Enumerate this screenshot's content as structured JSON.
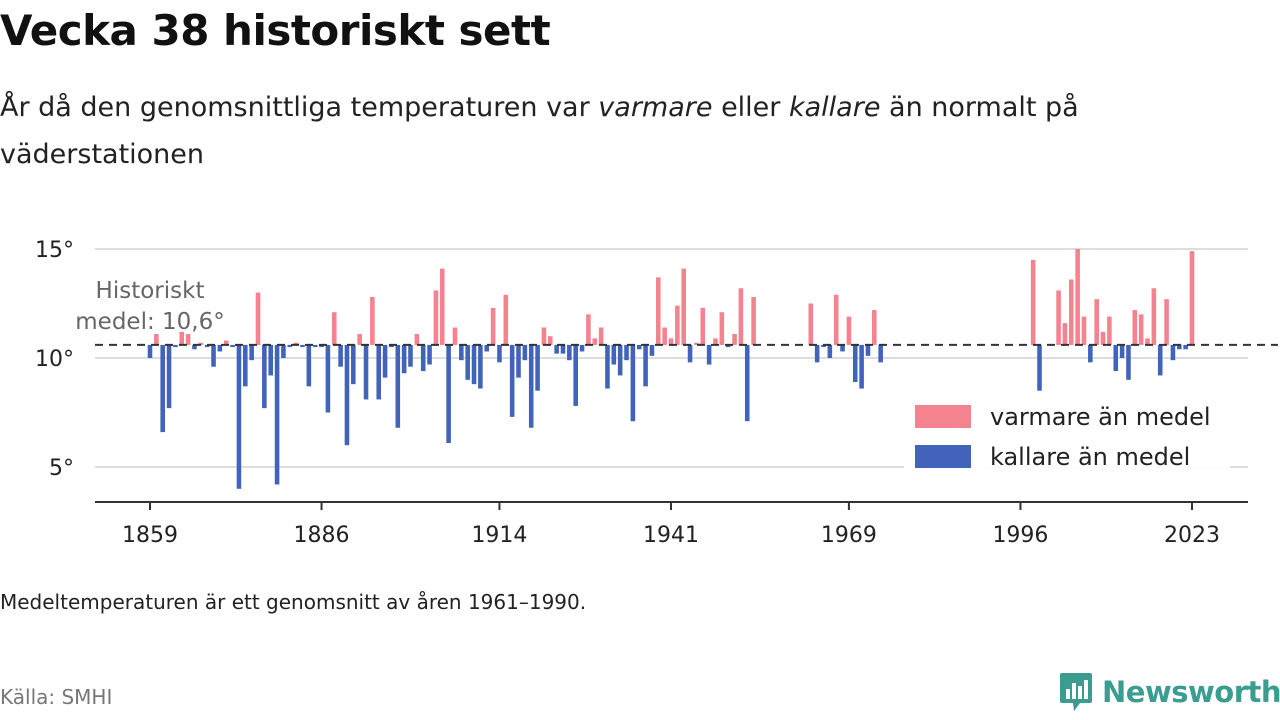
{
  "title": "Vecka 38 historiskt sett",
  "subtitle": {
    "part1": "År då den genomsnittliga temperaturen var ",
    "warm_word": "varmare",
    "part2": " eller ",
    "cold_word": "kallare",
    "part3": " än normalt på väderstationen"
  },
  "footnote": "Medeltemperaturen är ett genomsnitt av åren 1961–1990.",
  "source": "Källa: SMHI",
  "brand": {
    "name": "Newsworthy",
    "icon": "newsworthy-logo-icon"
  },
  "colors": {
    "warm": "#f4838f",
    "cold": "#4163b9",
    "grid": "#dddddd",
    "mean_line": "#333333",
    "axis": "#333333",
    "brand": "#3a9d8f"
  },
  "chart_data": {
    "type": "bar",
    "title": "Vecka 38 historiskt sett",
    "x_range": [
      1859,
      2023
    ],
    "ylim": [
      3.7,
      16.2
    ],
    "y_ticks": [
      5,
      10,
      15
    ],
    "y_tick_labels": [
      "5°",
      "10°",
      "15°"
    ],
    "x_ticks": [
      1859,
      1886,
      1914,
      1941,
      1969,
      1996,
      2023
    ],
    "x_tick_labels": [
      "1859",
      "1886",
      "1914",
      "1941",
      "1969",
      "1996",
      "2023"
    ],
    "baseline": 10.6,
    "baseline_label_line1": "Historiskt",
    "baseline_label_line2": "medel: 10,6°",
    "grid": true,
    "legend_position": "bottom-right",
    "legend": [
      {
        "key": "warm",
        "label": "varmare än medel"
      },
      {
        "key": "cold",
        "label": "kallare än medel"
      }
    ],
    "series": [
      {
        "year": 1859,
        "value": 10.0
      },
      {
        "year": 1860,
        "value": 11.1
      },
      {
        "year": 1861,
        "value": 6.6
      },
      {
        "year": 1862,
        "value": 7.7
      },
      {
        "year": 1863,
        "value": 10.5
      },
      {
        "year": 1864,
        "value": 11.2
      },
      {
        "year": 1865,
        "value": 11.1
      },
      {
        "year": 1866,
        "value": 10.4
      },
      {
        "year": 1867,
        "value": 10.7
      },
      {
        "year": 1868,
        "value": 10.5
      },
      {
        "year": 1869,
        "value": 9.6
      },
      {
        "year": 1870,
        "value": 10.3
      },
      {
        "year": 1871,
        "value": 10.8
      },
      {
        "year": 1872,
        "value": 10.5
      },
      {
        "year": 1873,
        "value": 4.0
      },
      {
        "year": 1874,
        "value": 8.7
      },
      {
        "year": 1875,
        "value": 9.9
      },
      {
        "year": 1876,
        "value": 13.0
      },
      {
        "year": 1877,
        "value": 7.7
      },
      {
        "year": 1878,
        "value": 9.2
      },
      {
        "year": 1879,
        "value": 4.2
      },
      {
        "year": 1880,
        "value": 10.0
      },
      {
        "year": 1881,
        "value": 10.5
      },
      {
        "year": 1882,
        "value": 10.7
      },
      {
        "year": 1883,
        "value": 10.5
      },
      {
        "year": 1884,
        "value": 8.7
      },
      {
        "year": 1885,
        "value": 10.5
      },
      {
        "year": 1886,
        "value": 10.5
      },
      {
        "year": 1887,
        "value": 7.5
      },
      {
        "year": 1888,
        "value": 12.1
      },
      {
        "year": 1889,
        "value": 9.6
      },
      {
        "year": 1890,
        "value": 6.0
      },
      {
        "year": 1891,
        "value": 8.8
      },
      {
        "year": 1892,
        "value": 11.1
      },
      {
        "year": 1893,
        "value": 8.1
      },
      {
        "year": 1894,
        "value": 12.8
      },
      {
        "year": 1895,
        "value": 8.1
      },
      {
        "year": 1896,
        "value": 9.1
      },
      {
        "year": 1897,
        "value": 10.5
      },
      {
        "year": 1898,
        "value": 6.8
      },
      {
        "year": 1899,
        "value": 9.3
      },
      {
        "year": 1900,
        "value": 9.6
      },
      {
        "year": 1901,
        "value": 11.1
      },
      {
        "year": 1902,
        "value": 9.4
      },
      {
        "year": 1903,
        "value": 9.7
      },
      {
        "year": 1904,
        "value": 13.1
      },
      {
        "year": 1905,
        "value": 14.1
      },
      {
        "year": 1906,
        "value": 6.1
      },
      {
        "year": 1907,
        "value": 11.4
      },
      {
        "year": 1908,
        "value": 9.9
      },
      {
        "year": 1909,
        "value": 9.0
      },
      {
        "year": 1910,
        "value": 8.8
      },
      {
        "year": 1911,
        "value": 8.6
      },
      {
        "year": 1912,
        "value": 10.3
      },
      {
        "year": 1913,
        "value": 12.3
      },
      {
        "year": 1914,
        "value": 9.8
      },
      {
        "year": 1915,
        "value": 12.9
      },
      {
        "year": 1916,
        "value": 7.3
      },
      {
        "year": 1917,
        "value": 9.1
      },
      {
        "year": 1918,
        "value": 9.9
      },
      {
        "year": 1919,
        "value": 6.8
      },
      {
        "year": 1920,
        "value": 8.5
      },
      {
        "year": 1921,
        "value": 11.4
      },
      {
        "year": 1922,
        "value": 11.0
      },
      {
        "year": 1923,
        "value": 10.2
      },
      {
        "year": 1924,
        "value": 10.2
      },
      {
        "year": 1925,
        "value": 9.9
      },
      {
        "year": 1926,
        "value": 7.8
      },
      {
        "year": 1927,
        "value": 10.3
      },
      {
        "year": 1928,
        "value": 12.0
      },
      {
        "year": 1929,
        "value": 10.9
      },
      {
        "year": 1930,
        "value": 11.4
      },
      {
        "year": 1931,
        "value": 8.6
      },
      {
        "year": 1932,
        "value": 9.7
      },
      {
        "year": 1933,
        "value": 9.2
      },
      {
        "year": 1934,
        "value": 9.9
      },
      {
        "year": 1935,
        "value": 7.1
      },
      {
        "year": 1936,
        "value": 10.4
      },
      {
        "year": 1937,
        "value": 8.7
      },
      {
        "year": 1938,
        "value": 10.1
      },
      {
        "year": 1939,
        "value": 13.7
      },
      {
        "year": 1940,
        "value": 11.4
      },
      {
        "year": 1941,
        "value": 10.9
      },
      {
        "year": 1942,
        "value": 12.4
      },
      {
        "year": 1943,
        "value": 14.1
      },
      {
        "year": 1944,
        "value": 9.8
      },
      {
        "year": 1945,
        "value": 10.7
      },
      {
        "year": 1946,
        "value": 12.3
      },
      {
        "year": 1947,
        "value": 9.7
      },
      {
        "year": 1948,
        "value": 10.9
      },
      {
        "year": 1949,
        "value": 12.1
      },
      {
        "year": 1950,
        "value": 10.5
      },
      {
        "year": 1951,
        "value": 11.1
      },
      {
        "year": 1952,
        "value": 13.2
      },
      {
        "year": 1953,
        "value": 7.1
      },
      {
        "year": 1954,
        "value": 12.8
      },
      {
        "year": 1963,
        "value": 12.5
      },
      {
        "year": 1964,
        "value": 9.8
      },
      {
        "year": 1965,
        "value": 10.5
      },
      {
        "year": 1966,
        "value": 10.0
      },
      {
        "year": 1967,
        "value": 12.9
      },
      {
        "year": 1968,
        "value": 10.3
      },
      {
        "year": 1969,
        "value": 11.9
      },
      {
        "year": 1970,
        "value": 8.9
      },
      {
        "year": 1971,
        "value": 8.6
      },
      {
        "year": 1972,
        "value": 10.1
      },
      {
        "year": 1973,
        "value": 12.2
      },
      {
        "year": 1974,
        "value": 9.8
      },
      {
        "year": 1974,
        "value": 9.8
      },
      {
        "year": 1998,
        "value": 14.5
      },
      {
        "year": 1999,
        "value": 8.5
      },
      {
        "year": 2002,
        "value": 13.1
      },
      {
        "year": 2003,
        "value": 11.6
      },
      {
        "year": 2004,
        "value": 13.6
      },
      {
        "year": 2005,
        "value": 15.0
      },
      {
        "year": 2006,
        "value": 11.9
      },
      {
        "year": 2007,
        "value": 9.8
      },
      {
        "year": 2008,
        "value": 12.7
      },
      {
        "year": 2009,
        "value": 11.2
      },
      {
        "year": 2010,
        "value": 11.9
      },
      {
        "year": 2011,
        "value": 9.4
      },
      {
        "year": 2012,
        "value": 10.0
      },
      {
        "year": 2013,
        "value": 9.0
      },
      {
        "year": 2014,
        "value": 12.2
      },
      {
        "year": 2015,
        "value": 12.0
      },
      {
        "year": 2016,
        "value": 10.9
      },
      {
        "year": 2017,
        "value": 13.2
      },
      {
        "year": 2018,
        "value": 9.2
      },
      {
        "year": 2019,
        "value": 12.7
      },
      {
        "year": 2020,
        "value": 9.9
      },
      {
        "year": 2021,
        "value": 10.4
      },
      {
        "year": 2022,
        "value": 10.4
      },
      {
        "year": 2023,
        "value": 14.9
      }
    ]
  }
}
